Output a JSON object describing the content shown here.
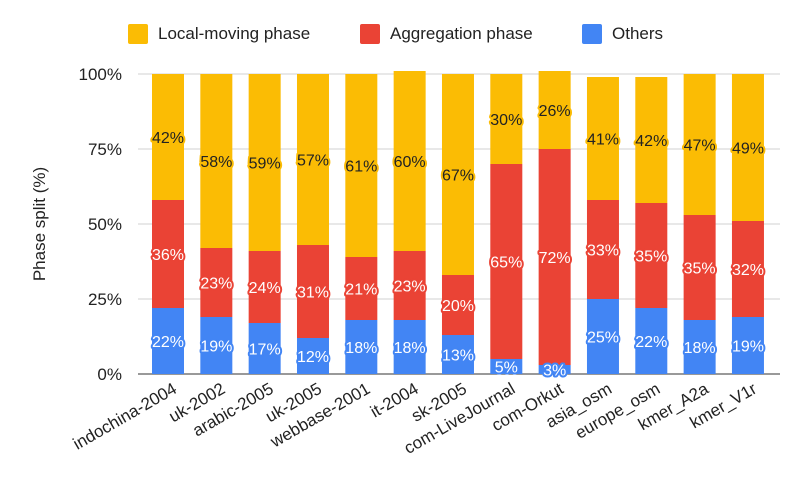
{
  "chart_data": {
    "type": "bar",
    "stacked": "percent",
    "ylabel": "Phase split (%)",
    "ylim": [
      0,
      100
    ],
    "yticks": [
      "0%",
      "25%",
      "50%",
      "75%",
      "100%"
    ],
    "grid": true,
    "legend_position": "top",
    "categories": [
      "indochina-2004",
      "uk-2002",
      "arabic-2005",
      "uk-2005",
      "webbase-2001",
      "it-2004",
      "sk-2005",
      "com-LiveJournal",
      "com-Orkut",
      "asia_osm",
      "europe_osm",
      "kmer_A2a",
      "kmer_V1r"
    ],
    "series": [
      {
        "name": "Others",
        "color": "#4285F4",
        "values": [
          22,
          19,
          17,
          12,
          18,
          18,
          13,
          5,
          3,
          25,
          22,
          18,
          19
        ],
        "labels": [
          "22%",
          "19%",
          "17%",
          "12%",
          "18%",
          "18%",
          "13%",
          "5%",
          "3%",
          "25%",
          "22%",
          "18%",
          "19%"
        ]
      },
      {
        "name": "Aggregation phase",
        "color": "#EA4335",
        "values": [
          36,
          23,
          24,
          31,
          21,
          23,
          20,
          65,
          72,
          33,
          35,
          35,
          32
        ],
        "labels": [
          "36%",
          "23%",
          "24%",
          "31%",
          "21%",
          "23%",
          "20%",
          "65%",
          "72%",
          "33%",
          "35%",
          "35%",
          "32%"
        ]
      },
      {
        "name": "Local-moving phase",
        "color": "#FBBC04",
        "values": [
          42,
          58,
          59,
          57,
          61,
          60,
          67,
          30,
          26,
          41,
          42,
          47,
          49
        ],
        "labels": [
          "42%",
          "58%",
          "59%",
          "57%",
          "61%",
          "60%",
          "67%",
          "30%",
          "26%",
          "41%",
          "42%",
          "47%",
          "49%"
        ]
      }
    ]
  },
  "legend": [
    {
      "label": "Local-moving phase",
      "color": "#FBBC04"
    },
    {
      "label": "Aggregation phase",
      "color": "#EA4335"
    },
    {
      "label": "Others",
      "color": "#4285F4"
    }
  ]
}
